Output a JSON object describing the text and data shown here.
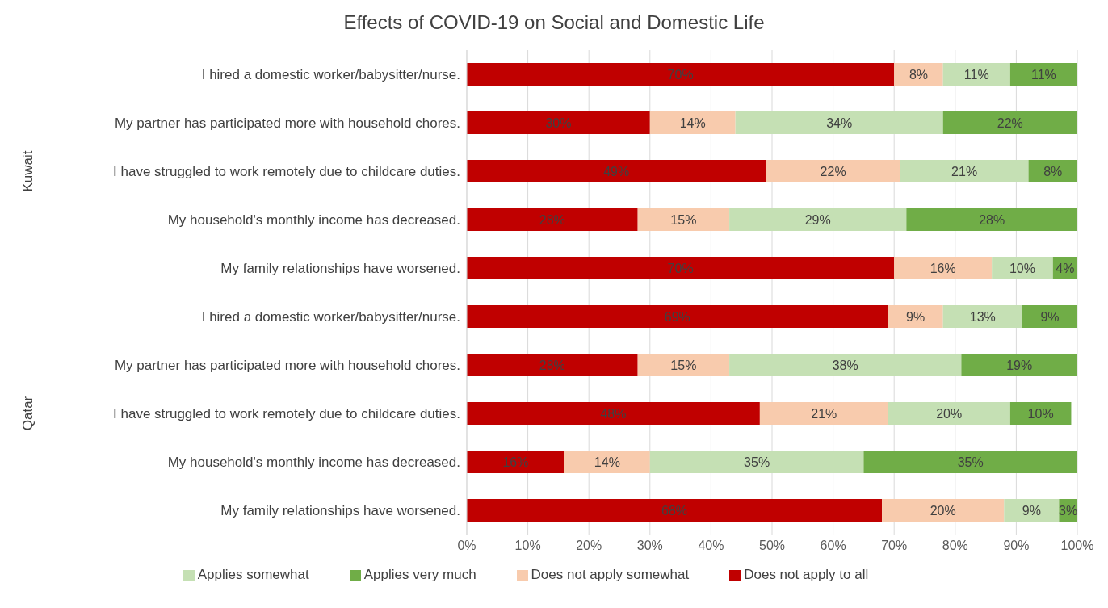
{
  "chart_data": {
    "type": "bar",
    "orientation": "horizontal",
    "stacked": true,
    "title": "Effects of COVID-19 on Social and Domestic Life",
    "categories": [
      "I hired a domestic worker/babysitter/nurse.",
      "My partner has participated more with household chores.",
      "I have struggled to work remotely due to childcare duties.",
      "My household's monthly income has decreased.",
      "My family relationships have worsened.",
      "I hired a domestic worker/babysitter/nurse.",
      "My partner has participated more with household chores.",
      "I have struggled to work remotely due to childcare duties.",
      "My household's monthly income has decreased.",
      "My family relationships have worsened."
    ],
    "annotations": [
      "Kuwait",
      "Qatar"
    ],
    "series": [
      {
        "name": "Does not apply to all",
        "color": "#c00000",
        "values": [
          70,
          30,
          49,
          28,
          70,
          69,
          28,
          48,
          16,
          68
        ],
        "value_labels": [
          "70%",
          "30%",
          "49%",
          "28%",
          "70%",
          "69%",
          "28%",
          "48%",
          "16%",
          "68%"
        ]
      },
      {
        "name": "Does not apply somewhat",
        "color": "#f8cbad",
        "values": [
          8,
          14,
          22,
          15,
          16,
          9,
          15,
          21,
          14,
          20
        ],
        "value_labels": [
          "8%",
          "14%",
          "22%",
          "15%",
          "16%",
          "9%",
          "15%",
          "21%",
          "14%",
          "20%"
        ]
      },
      {
        "name": "Applies somewhat",
        "color": "#c5e0b4",
        "values": [
          11,
          34,
          21,
          29,
          10,
          13,
          38,
          20,
          35,
          9
        ],
        "value_labels": [
          "11%",
          "34%",
          "21%",
          "29%",
          "10%",
          "13%",
          "38%",
          "20%",
          "35%",
          "9%"
        ]
      },
      {
        "name": "Applies very much",
        "color": "#70ad47",
        "values": [
          11,
          22,
          8,
          28,
          4,
          9,
          19,
          10,
          35,
          3
        ],
        "value_labels": [
          "11%",
          "22%",
          "8%",
          "28%",
          "4%",
          "9%",
          "19%",
          "10%",
          "35%",
          "3%"
        ]
      }
    ],
    "xlim": [
      0,
      100
    ],
    "xticks": [
      {
        "value": 0,
        "label": "0%"
      },
      {
        "value": 10,
        "label": "10%"
      },
      {
        "value": 20,
        "label": "20%"
      },
      {
        "value": 30,
        "label": "30%"
      },
      {
        "value": 40,
        "label": "40%"
      },
      {
        "value": 50,
        "label": "50%"
      },
      {
        "value": 60,
        "label": "60%"
      },
      {
        "value": 70,
        "label": "70%"
      },
      {
        "value": 80,
        "label": "80%"
      },
      {
        "value": 90,
        "label": "90%"
      },
      {
        "value": 100,
        "label": "100%"
      }
    ],
    "grid": "x",
    "legend": "bottom"
  }
}
